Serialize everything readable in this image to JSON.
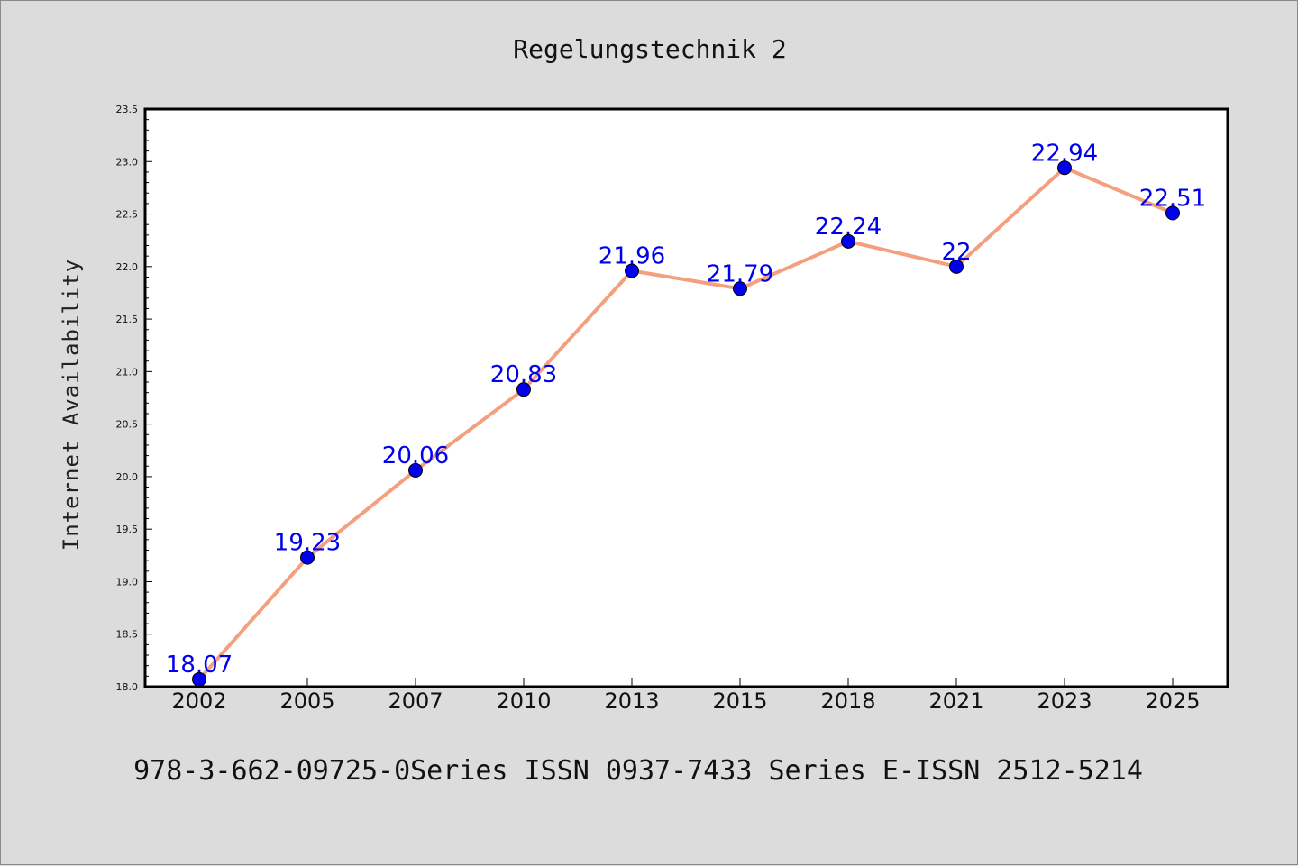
{
  "page": {
    "footer": "978-3-662-09725-0Series ISSN 0937-7433 Series E-ISSN 2512-5214"
  },
  "chart_data": {
    "type": "line",
    "title": "Regelungstechnik 2",
    "xlabel": "",
    "ylabel": "Internet Availability",
    "categories": [
      "2002",
      "2005",
      "2007",
      "2010",
      "2013",
      "2015",
      "2018",
      "2021",
      "2023",
      "2025"
    ],
    "series": [
      {
        "values": [
          18.07,
          19.23,
          20.06,
          20.83,
          21.96,
          21.79,
          22.24,
          22,
          22.94,
          22.51
        ],
        "data_labels": [
          "18.07",
          "19.23",
          "20.06",
          "20.83",
          "21.96",
          "21.79",
          "22.24",
          "22",
          "22.94",
          "22.51"
        ],
        "line_color": "#f4a07e",
        "marker_color": "#0000ee",
        "label_color": "#0000ee"
      }
    ],
    "ylim": [
      18.0,
      23.5
    ],
    "yticks": [
      "18.0",
      "18.5",
      "19.0",
      "19.5",
      "20.0",
      "20.5",
      "21.0",
      "21.5",
      "22.0",
      "22.5",
      "23.0",
      "23.5"
    ],
    "grid": false,
    "legend": "none"
  }
}
